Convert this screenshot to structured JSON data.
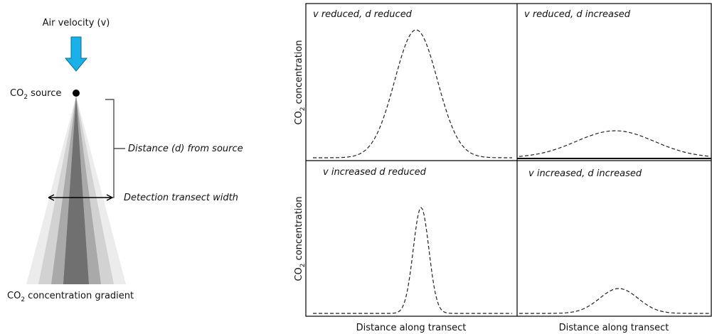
{
  "left_diagram": {
    "air_velocity": "Air velocity (v)",
    "source_label": {
      "prefix": "CO",
      "subscript": "2",
      "rest": " source"
    },
    "distance_label": "Distance (d) from source",
    "transect_label": "Detection transect width",
    "gradient_label": {
      "prefix": "CO",
      "subscript": "2",
      "rest": " concentration gradient"
    }
  },
  "panels": [
    {
      "title": "v reduced, d reduced"
    },
    {
      "title": "v reduced, d increased"
    },
    {
      "title": "v increased d reduced"
    },
    {
      "title": "v increased, d increased"
    }
  ],
  "axes": {
    "y_label": {
      "prefix": "CO",
      "subscript": "2",
      "rest": " concentration"
    },
    "x_label_left": "Distance along transect",
    "x_label_right": "Distance along transect"
  }
}
